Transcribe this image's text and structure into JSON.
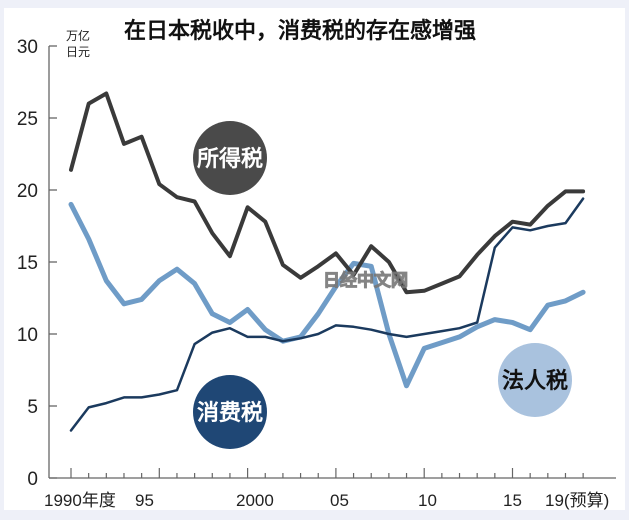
{
  "chart_data": {
    "type": "line",
    "title": "在日本税收中，消费税的存在感增强",
    "ylabel": "万亿日元",
    "ylabel_lines": [
      "万亿",
      "日元"
    ],
    "xlabel": "",
    "ylim": [
      0,
      30
    ],
    "yticks": [
      0,
      5,
      10,
      15,
      20,
      25,
      30
    ],
    "x": [
      1990,
      1991,
      1992,
      1993,
      1994,
      1995,
      1996,
      1997,
      1998,
      1999,
      2000,
      2001,
      2002,
      2003,
      2004,
      2005,
      2006,
      2007,
      2008,
      2009,
      2010,
      2011,
      2012,
      2013,
      2014,
      2015,
      2016,
      2017,
      2018,
      2019
    ],
    "xtick_labels": [
      {
        "year": 1990,
        "label": "1990年度"
      },
      {
        "year": 1995,
        "label": "95"
      },
      {
        "year": 2000,
        "label": "2000"
      },
      {
        "year": 2005,
        "label": "05"
      },
      {
        "year": 2010,
        "label": "10"
      },
      {
        "year": 2015,
        "label": "15"
      },
      {
        "year": 2019,
        "label": "19(预算)"
      }
    ],
    "series": [
      {
        "name": "所得税",
        "color": "#3a3a3a",
        "width": 4,
        "values": [
          21.4,
          26.0,
          26.7,
          23.2,
          23.7,
          20.4,
          19.5,
          19.2,
          17.0,
          15.4,
          18.8,
          17.8,
          14.8,
          13.9,
          14.7,
          15.6,
          14.1,
          16.1,
          15.0,
          12.9,
          13.0,
          13.5,
          14.0,
          15.5,
          16.8,
          17.8,
          17.6,
          18.9,
          19.9,
          19.9
        ]
      },
      {
        "name": "法人税",
        "color": "#6f9cc7",
        "width": 5,
        "values": [
          18.4,
          16.6,
          13.7,
          12.1,
          12.4,
          13.7,
          14.5,
          13.5,
          11.4,
          10.8,
          11.7,
          10.3,
          9.5,
          9.8,
          11.4,
          13.3,
          14.9,
          14.7,
          10.0,
          6.4,
          9.0,
          9.4,
          9.8,
          10.5,
          11.0,
          10.8,
          10.3,
          12.0,
          12.3,
          12.9
        ]
      },
      {
        "name": "消费税",
        "color": "#1b3a5e",
        "width": 2.5,
        "values": [
          4.6,
          4.9,
          5.2,
          5.6,
          5.6,
          5.8,
          6.1,
          9.3,
          10.1,
          10.4,
          9.8,
          9.8,
          9.5,
          9.7,
          10.0,
          10.6,
          10.5,
          10.3,
          10.0,
          9.8,
          10.0,
          10.2,
          10.4,
          10.8,
          16.0,
          17.4,
          17.2,
          17.5,
          17.7,
          19.4
        ]
      }
    ],
    "series_first_points": {
      "法人税": 19.0,
      "消费税": 3.3
    },
    "legend": "inline circular labels"
  },
  "labels": {
    "title": "在日本税收中，消费税的存在感增强",
    "unit_line1": "万亿",
    "unit_line2": "日元",
    "y": [
      "30",
      "25",
      "20",
      "15",
      "10",
      "5",
      "0"
    ],
    "x": [
      "1990年度",
      "95",
      "2000",
      "05",
      "10",
      "15",
      "19(预算)"
    ],
    "income_tax": "所得税",
    "corporate_tax": "法人税",
    "consumption_tax": "消费税",
    "watermark": "日经中文网"
  },
  "colors": {
    "income_tax": "#3a3a3a",
    "corporate_tax": "#6f9cc7",
    "consumption_tax": "#1b3a5e",
    "corporate_badge": "#a9c2de",
    "consumption_badge": "#1f4775",
    "income_badge": "#4a4a4a"
  }
}
